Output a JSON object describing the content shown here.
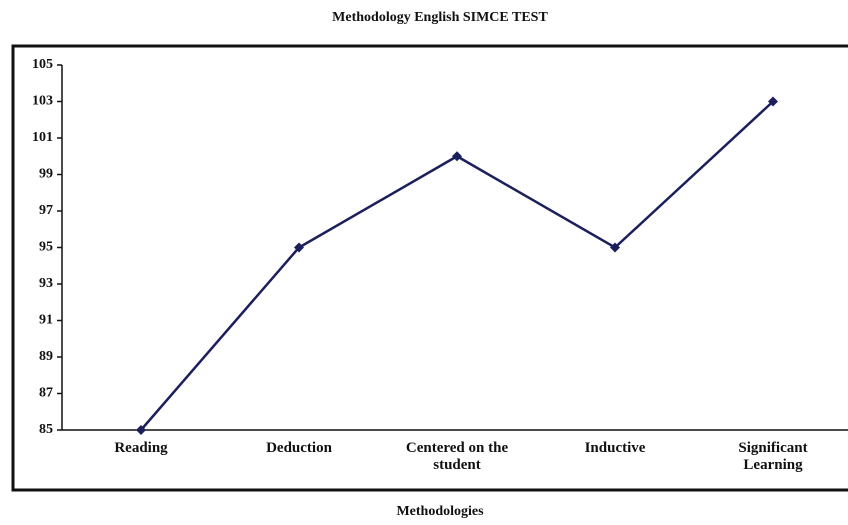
{
  "chart_data": {
    "type": "line",
    "title": "Methodology English SIMCE TEST",
    "x_label": "Methodologies",
    "categories": [
      "Reading",
      "Deduction",
      "Centered on the student",
      "Inductive",
      "Significant Learning"
    ],
    "series": [
      {
        "name": "SIMCE",
        "color": "#1b1f5c",
        "values": [
          85,
          95,
          100,
          95,
          103
        ]
      }
    ],
    "ylim": [
      85,
      105
    ],
    "yticks": [
      85,
      87,
      89,
      91,
      93,
      95,
      97,
      99,
      101,
      103,
      105
    ]
  }
}
